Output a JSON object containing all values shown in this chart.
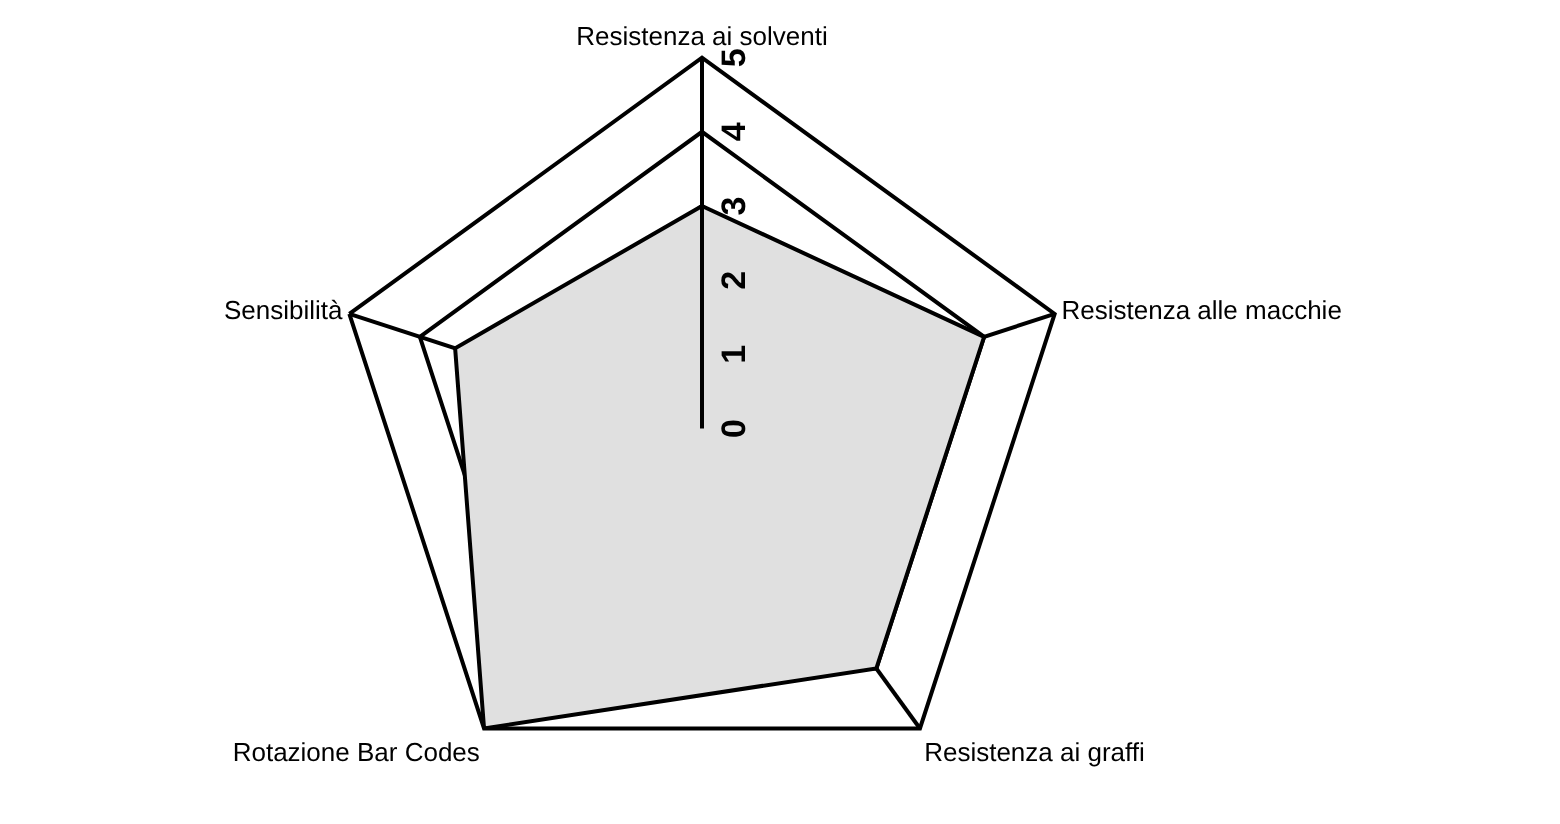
{
  "chart_data": {
    "type": "radar",
    "categories": [
      "Resistenza ai solventi",
      "Resistenza alle macchie",
      "Resistenza ai graffi",
      "Rotazione Bar Codes",
      "Sensibilità"
    ],
    "series": [
      {
        "color": "#e0e0e0",
        "values": [
          3,
          4,
          4,
          5,
          3.5
        ]
      }
    ],
    "ylim": [
      0,
      5
    ],
    "yticks": [
      0,
      1,
      2,
      3,
      4,
      5
    ],
    "grid": true,
    "legend": false,
    "marker": "none"
  }
}
